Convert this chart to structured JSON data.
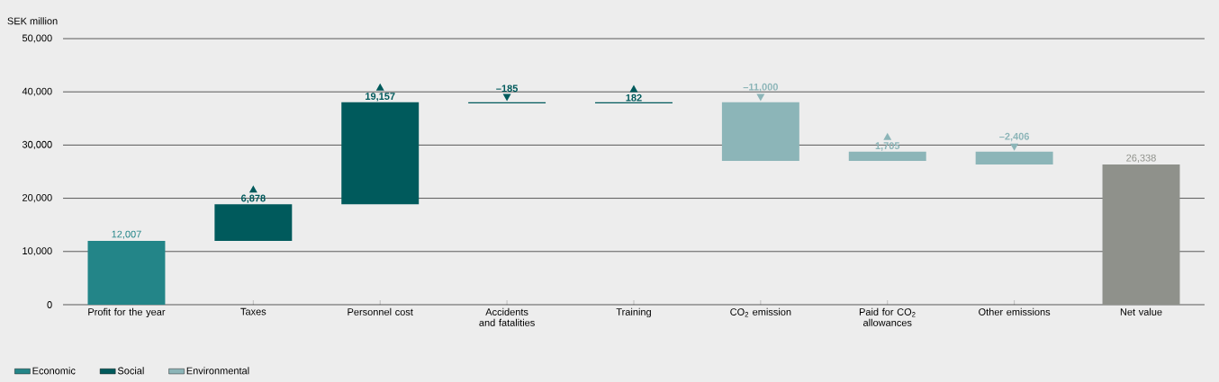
{
  "chart_data": {
    "type": "bar",
    "ylabel": "SEK million",
    "categories": [
      "Profit for the year",
      "Taxes",
      "Personnel cost",
      "Accidents and fatalities",
      "Training",
      "CO$_{2}$ emission",
      "Paid for CO$_{2}$ allowances",
      "Other emissions",
      "Net value"
    ],
    "series": [
      {
        "name": "Economic",
        "color": "#238588",
        "base": [
          0,
          null,
          null,
          null,
          null,
          null,
          null,
          null,
          null
        ],
        "values": [
          12007,
          null,
          null,
          null,
          null,
          null,
          null,
          null,
          null
        ],
        "value_labels": [
          "12,007",
          null,
          null,
          null,
          null,
          null,
          null,
          null,
          null
        ]
      },
      {
        "name": "Social",
        "color": "#005a5c",
        "base": [
          null,
          12007,
          18885,
          38042,
          37857,
          null,
          null,
          null,
          null
        ],
        "values": [
          null,
          6878,
          19157,
          -185,
          182,
          null,
          null,
          null,
          null
        ],
        "value_labels": [
          null,
          "6,878",
          "19,157",
          "–185",
          "182",
          null,
          null,
          null,
          null
        ]
      },
      {
        "name": "Environmental",
        "color": "#8cb5b8",
        "base": [
          null,
          null,
          null,
          null,
          null,
          38039,
          27039,
          28744,
          null
        ],
        "values": [
          null,
          null,
          null,
          null,
          null,
          -11000,
          1705,
          -2406,
          null
        ],
        "value_labels": [
          null,
          null,
          null,
          null,
          null,
          "–11,000",
          "1,705",
          "–2,406",
          null
        ]
      },
      {
        "color": "#8f918b",
        "base": [
          null,
          null,
          null,
          null,
          null,
          null,
          null,
          null,
          0
        ],
        "values": [
          null,
          null,
          null,
          null,
          null,
          null,
          null,
          null,
          26338
        ],
        "value_labels": [
          null,
          null,
          null,
          null,
          null,
          null,
          null,
          null,
          "26,338"
        ]
      }
    ],
    "ylim": [
      0,
      50000
    ],
    "yticks": [
      0,
      {
        "value": 10000,
        "label": "10,000"
      },
      {
        "value": 20000,
        "label": "20,000"
      },
      {
        "value": 30000,
        "label": "30,000"
      },
      {
        "value": 40000,
        "label": "40,000"
      },
      {
        "value": 50000,
        "label": "50,000"
      }
    ],
    "grid": "y",
    "legend": "bottom left"
  }
}
